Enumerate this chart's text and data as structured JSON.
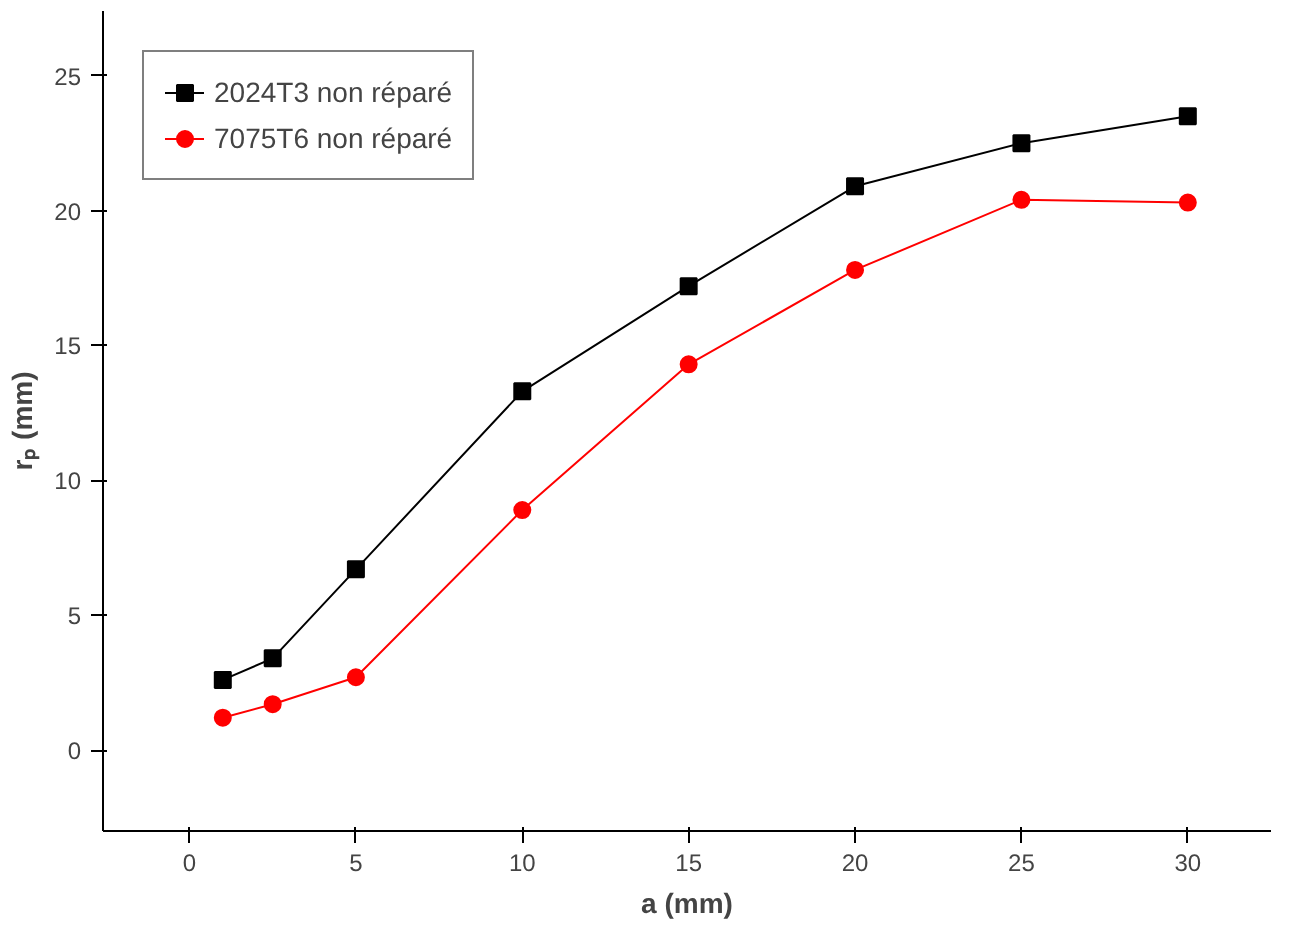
{
  "chart_data": {
    "type": "line",
    "xlabel": "a (mm)",
    "ylabel": "rₚ (mm)",
    "x": [
      1,
      2.5,
      5,
      10,
      15,
      20,
      25,
      30
    ],
    "series": [
      {
        "name": "2024T3 non réparé",
        "color": "#000000",
        "marker": "square",
        "values": [
          2.6,
          3.4,
          6.7,
          13.3,
          17.2,
          20.9,
          22.5,
          23.5
        ]
      },
      {
        "name": "7075T6 non réparé",
        "color": "#ff0000",
        "marker": "circle",
        "values": [
          1.2,
          1.7,
          2.7,
          8.9,
          14.3,
          17.8,
          20.4,
          20.3
        ]
      }
    ],
    "xlim": [
      -2.6,
      32.5
    ],
    "ylim": [
      -3,
      27.4
    ],
    "xticks": [
      0,
      5,
      10,
      15,
      20,
      25,
      30
    ],
    "yticks": [
      0,
      5,
      10,
      15,
      20,
      25
    ],
    "grid": false,
    "legend": "top left",
    "line_style": "solid"
  }
}
